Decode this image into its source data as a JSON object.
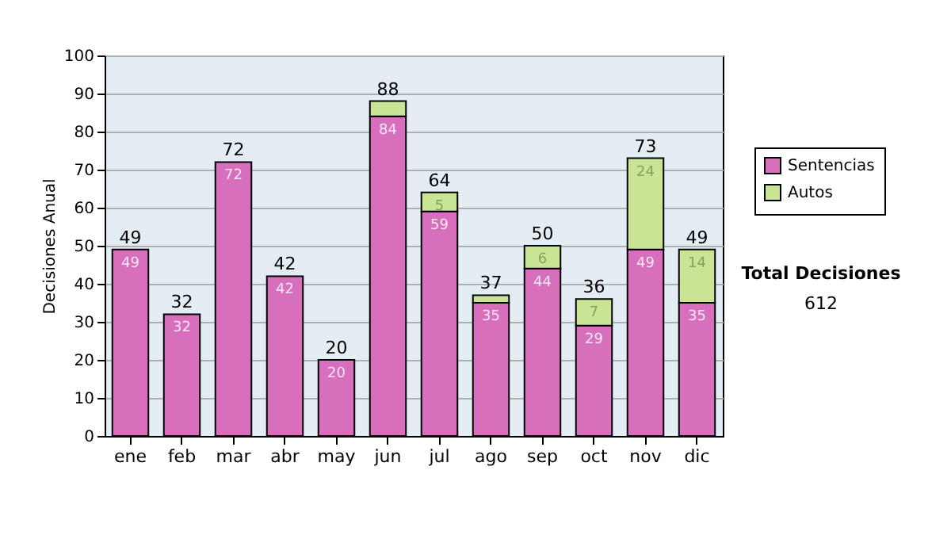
{
  "chart_data": {
    "type": "bar",
    "stacked": true,
    "ylabel": "Decisiones Anual",
    "categories": [
      "ene",
      "feb",
      "mar",
      "abr",
      "may",
      "jun",
      "jul",
      "ago",
      "sep",
      "oct",
      "nov",
      "dic"
    ],
    "series": [
      {
        "name": "Sentencias",
        "color": "#d86fbd",
        "values": [
          49,
          32,
          72,
          42,
          20,
          84,
          59,
          35,
          44,
          29,
          49,
          35
        ],
        "value_labels": [
          "49",
          "32",
          "72",
          "42",
          "20",
          "84",
          "59",
          "35",
          "44",
          "29",
          "49",
          "35"
        ]
      },
      {
        "name": "Autos",
        "color": "#c8e494",
        "values": [
          null,
          null,
          null,
          null,
          null,
          4,
          5,
          2,
          6,
          7,
          24,
          14
        ],
        "value_labels": [
          null,
          null,
          null,
          null,
          null,
          null,
          "5",
          null,
          "6",
          "7",
          "24",
          "14"
        ]
      }
    ],
    "totals": [
      "49",
      "32",
      "72",
      "42",
      "20",
      "88",
      "64",
      "37",
      "50",
      "36",
      "73",
      "49"
    ],
    "ylim": [
      0,
      100
    ],
    "yticks": [
      0,
      10,
      20,
      30,
      40,
      50,
      60,
      70,
      80,
      90,
      100
    ],
    "grid": "y",
    "legend": "right",
    "annotations": [
      "Total Decisiones",
      "612"
    ]
  }
}
